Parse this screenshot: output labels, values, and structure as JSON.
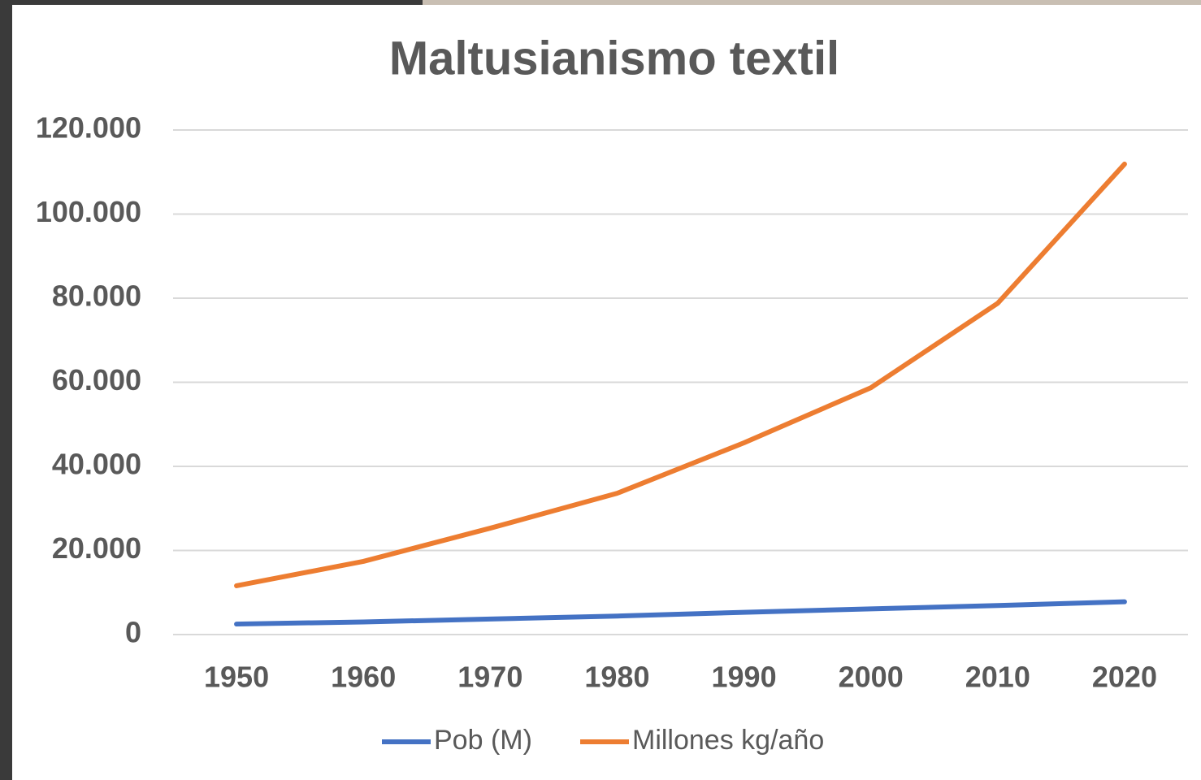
{
  "chart_data": {
    "type": "line",
    "title": "Maltusianismo textil",
    "categories": [
      "1950",
      "1960",
      "1970",
      "1980",
      "1990",
      "2000",
      "2010",
      "2020"
    ],
    "series": [
      {
        "name": "Pob (M)",
        "color": "#4472c4",
        "values": [
          2500,
          3000,
          3700,
          4400,
          5300,
          6100,
          6900,
          7800
        ]
      },
      {
        "name": "Millones kg/año",
        "color": "#ed7d31",
        "values": [
          11600,
          17400,
          25300,
          33600,
          45600,
          58700,
          78800,
          111900
        ]
      }
    ],
    "ylim": [
      0,
      120000
    ],
    "yticks": [
      0,
      {
        "value": 20000,
        "label": "20.000"
      },
      {
        "value": 40000,
        "label": "40.000"
      },
      {
        "value": 60000,
        "label": "60.000"
      },
      {
        "value": 80000,
        "label": "80.000"
      },
      {
        "value": 100000,
        "label": "100.000"
      },
      {
        "value": 120000,
        "label": "120.000"
      }
    ],
    "grid": true,
    "legend": "bottom"
  }
}
